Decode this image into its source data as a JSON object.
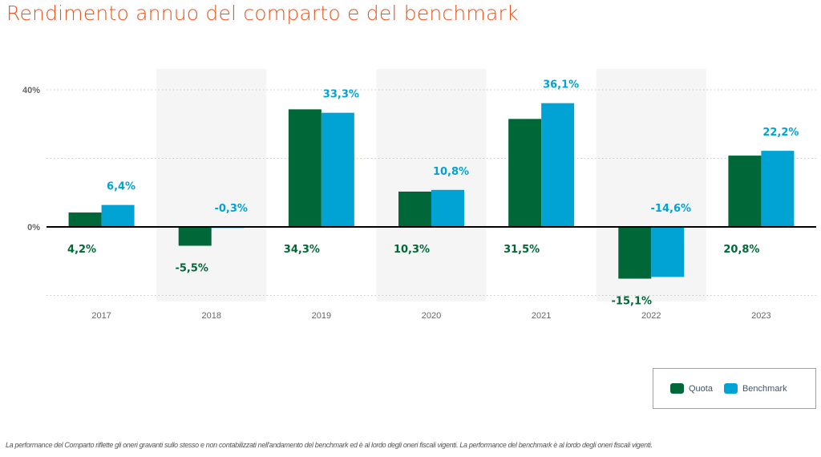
{
  "title": "Rendimento annuo del comparto e del benchmark",
  "colors": {
    "quota": "#006838",
    "benchmark": "#00a3d4",
    "title": "#e8541e",
    "band": "#f5f5f5"
  },
  "chart_data": {
    "type": "bar",
    "title": "Rendimento annuo del comparto e del benchmark",
    "xlabel": "",
    "ylabel": "",
    "categories": [
      "2017",
      "2018",
      "2019",
      "2020",
      "2021",
      "2022",
      "2023"
    ],
    "series": [
      {
        "name": "Quota",
        "values": [
          4.2,
          -5.5,
          34.3,
          10.3,
          31.5,
          -15.1,
          20.8
        ],
        "labels": [
          "4,2%",
          "-5,5%",
          "34,3%",
          "10,3%",
          "31,5%",
          "-15,1%",
          "20,8%"
        ]
      },
      {
        "name": "Benchmark",
        "values": [
          6.4,
          -0.3,
          33.3,
          10.8,
          36.1,
          -14.6,
          22.2
        ],
        "labels": [
          "6,4%",
          "-0,3%",
          "33,3%",
          "10,8%",
          "36,1%",
          "-14,6%",
          "22,2%"
        ]
      }
    ],
    "yticks": [
      {
        "value": 40,
        "label": "40%"
      },
      {
        "value": 0,
        "label": "0%"
      }
    ],
    "gridlines": [
      40,
      20,
      -20
    ],
    "ylim": [
      -20,
      40
    ],
    "grid": true,
    "alternating_bands": true,
    "legend_position": "bottom-right"
  },
  "legend": [
    {
      "label": "Quota"
    },
    {
      "label": "Benchmark"
    }
  ],
  "footnote": "La performance del Comparto riflette gli oneri gravanti sullo stesso e non contabilizzati nell'andamento del benchmark ed è al lordo degli oneri fiscali vigenti. La performance del benchmark è al lordo degli oneri fiscali vigenti."
}
